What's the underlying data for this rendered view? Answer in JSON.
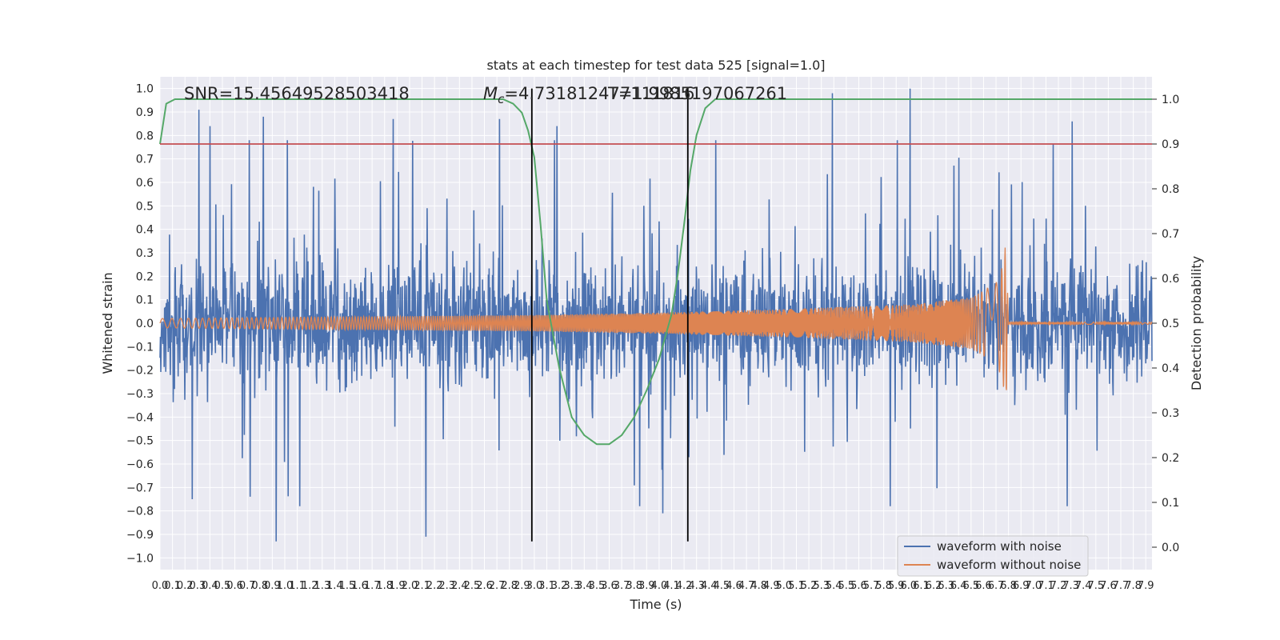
{
  "chart_data": {
    "type": "line",
    "title": "stats at each timestep for test data 525 [signal=1.0]",
    "xlabel": "Time (s)",
    "ylabel": "Whitened strain",
    "ylabel_right": "Detection probability",
    "xlim": [
      0.0,
      7.95
    ],
    "ylim": [
      -1.05,
      1.05
    ],
    "ylim_right": [
      -0.05,
      1.05
    ],
    "x_ticks": [
      "0.0",
      "0.1",
      "0.2",
      "0.3",
      "0.4",
      "0.5",
      "0.6",
      "0.7",
      "0.8",
      "0.9",
      "1.0",
      "1.1",
      "1.2",
      "1.3",
      "1.4",
      "1.5",
      "1.6",
      "1.7",
      "1.8",
      "1.9",
      "2.0",
      "2.1",
      "2.2",
      "2.3",
      "2.4",
      "2.5",
      "2.6",
      "2.7",
      "2.8",
      "2.9",
      "3.0",
      "3.1",
      "3.2",
      "3.3",
      "3.4",
      "3.5",
      "3.6",
      "3.7",
      "3.8",
      "3.9",
      "4.0",
      "4.1",
      "4.2",
      "4.3",
      "4.4",
      "4.5",
      "4.6",
      "4.7",
      "4.8",
      "4.9",
      "5.0",
      "5.1",
      "5.2",
      "5.3",
      "5.4",
      "5.5",
      "5.6",
      "5.7",
      "5.8",
      "5.9",
      "6.0",
      "6.1",
      "6.2",
      "6.3",
      "6.4",
      "6.5",
      "6.6",
      "6.7",
      "6.8",
      "6.9",
      "7.0",
      "7.1",
      "7.2",
      "7.3",
      "7.4",
      "7.5",
      "7.6",
      "7.7",
      "7.8",
      "7.9"
    ],
    "y_ticks": [
      "1.0",
      "0.9",
      "0.8",
      "0.7",
      "0.6",
      "0.5",
      "0.4",
      "0.3",
      "0.2",
      "0.1",
      "0.0",
      "−0.1",
      "−0.2",
      "−0.3",
      "−0.4",
      "−0.5",
      "−0.6",
      "−0.7",
      "−0.8",
      "−0.9",
      "−1.0"
    ],
    "y_ticks_right": [
      "1.0",
      "0.9",
      "0.8",
      "0.7",
      "0.6",
      "0.5",
      "0.4",
      "0.3",
      "0.2",
      "0.1",
      "0.0"
    ],
    "grid": true,
    "legend_position": "lower-right",
    "threshold_right": 0.9,
    "vertical_lines_x": [
      2.98,
      4.23
    ],
    "annotations": [
      "SNR=15.45649528503418",
      "M_c=4.731812477111816",
      "T=1.9985197067261"
    ],
    "series": [
      {
        "name": "waveform with noise",
        "color": "#4c72b0",
        "axis": "left",
        "kind": "noise",
        "approx_envelope": [
          -0.5,
          0.5
        ],
        "notable_peaks": [
          {
            "x": 0.31,
            "y": 0.91
          },
          {
            "x": 0.4,
            "y": 0.84
          },
          {
            "x": 0.83,
            "y": 0.88
          },
          {
            "x": 1.87,
            "y": 0.87
          },
          {
            "x": 2.72,
            "y": 0.87
          },
          {
            "x": 3.18,
            "y": 0.84
          },
          {
            "x": 5.39,
            "y": 0.98
          },
          {
            "x": 6.01,
            "y": 1.0
          },
          {
            "x": 7.31,
            "y": 0.86
          },
          {
            "x": 0.93,
            "y": -0.93
          },
          {
            "x": 2.13,
            "y": -0.91
          },
          {
            "x": 0.26,
            "y": -0.75
          },
          {
            "x": 4.03,
            "y": -0.81
          }
        ]
      },
      {
        "name": "waveform without noise",
        "color": "#dd8452",
        "axis": "left",
        "kind": "chirp",
        "x": [
          0.0,
          1.0,
          2.0,
          3.0,
          4.0,
          5.0,
          6.0,
          6.5,
          6.7,
          6.75,
          6.78,
          6.8,
          7.95
        ],
        "amplitude": [
          0.02,
          0.025,
          0.03,
          0.035,
          0.045,
          0.06,
          0.08,
          0.11,
          0.17,
          0.24,
          0.35,
          0.005,
          0.005
        ]
      },
      {
        "name": "",
        "color": "#55a868",
        "axis": "right",
        "x": [
          0.0,
          0.05,
          0.12,
          0.3,
          1.0,
          2.0,
          2.6,
          2.75,
          2.83,
          2.9,
          2.95,
          3.0,
          3.05,
          3.1,
          3.2,
          3.3,
          3.4,
          3.5,
          3.6,
          3.7,
          3.8,
          3.9,
          4.0,
          4.1,
          4.15,
          4.2,
          4.25,
          4.3,
          4.37,
          4.45,
          4.55,
          5.0,
          6.0,
          7.0,
          7.95
        ],
        "y": [
          0.9,
          0.99,
          1.0,
          1.0,
          1.0,
          1.0,
          1.0,
          1.0,
          0.99,
          0.97,
          0.93,
          0.87,
          0.72,
          0.55,
          0.4,
          0.29,
          0.25,
          0.23,
          0.23,
          0.25,
          0.29,
          0.35,
          0.42,
          0.52,
          0.61,
          0.72,
          0.84,
          0.92,
          0.98,
          1.0,
          1.0,
          1.0,
          1.0,
          1.0,
          1.0
        ]
      }
    ]
  }
}
